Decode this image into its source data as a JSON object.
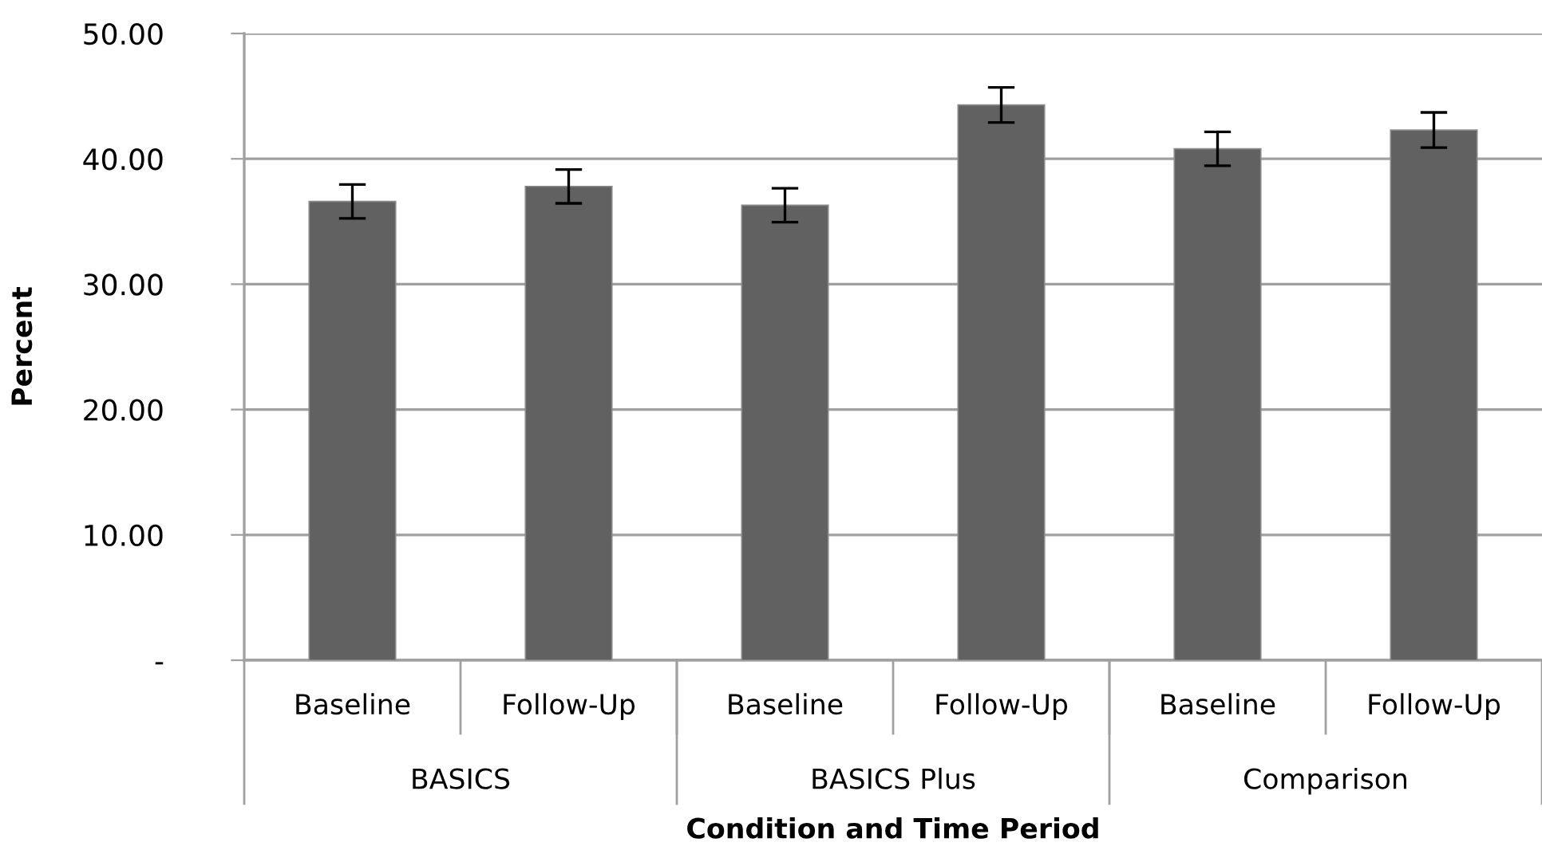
{
  "chart_data": {
    "type": "bar",
    "xlabel": "Condition and Time Period",
    "ylabel": "Percent",
    "categories": [
      "Baseline",
      "Follow-Up",
      "Baseline",
      "Follow-Up",
      "Baseline",
      "Follow-Up"
    ],
    "series": [
      {
        "color": "#616161",
        "values": [
          36.6,
          37.8,
          36.3,
          44.3,
          40.8,
          42.3
        ],
        "errors": [
          1.35,
          1.35,
          1.35,
          1.4,
          1.35,
          1.4
        ]
      }
    ],
    "annotations": [
      "BASICS",
      "BASICS Plus",
      "Comparison"
    ],
    "ylim": [
      0,
      50
    ],
    "yticks": [
      {
        "value": 0,
        "label": "-"
      },
      {
        "value": 10,
        "label": "10.00"
      },
      {
        "value": 20,
        "label": "20.00"
      },
      {
        "value": 30,
        "label": "30.00"
      },
      {
        "value": 40,
        "label": "40.00"
      },
      {
        "value": 50,
        "label": "50.00"
      }
    ],
    "grid": "y",
    "legend": false
  }
}
